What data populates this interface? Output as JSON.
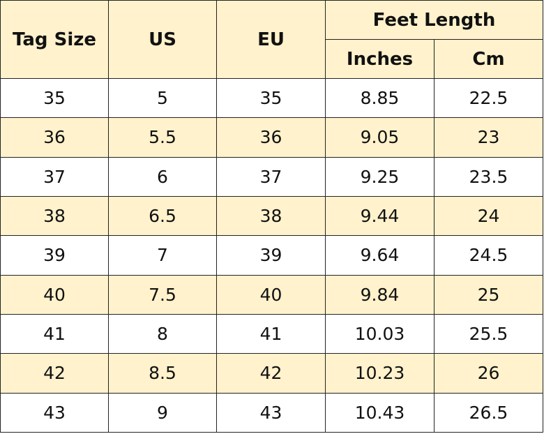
{
  "header": {
    "tag_size": "Tag Size",
    "us": "US",
    "eu": "EU",
    "feet_length": "Feet Length",
    "inches": "Inches",
    "cm": "Cm"
  },
  "colors": {
    "header_bg": "#fff2cc",
    "shaded_row_bg": "#fff2cc",
    "plain_row_bg": "#ffffff",
    "border": "#222222"
  },
  "rows": [
    {
      "tag": "35",
      "us": "5",
      "eu": "35",
      "inches": "8.85",
      "cm": "22.5"
    },
    {
      "tag": "36",
      "us": "5.5",
      "eu": "36",
      "inches": "9.05",
      "cm": "23"
    },
    {
      "tag": "37",
      "us": "6",
      "eu": "37",
      "inches": "9.25",
      "cm": "23.5"
    },
    {
      "tag": "38",
      "us": "6.5",
      "eu": "38",
      "inches": "9.44",
      "cm": "24"
    },
    {
      "tag": "39",
      "us": "7",
      "eu": "39",
      "inches": "9.64",
      "cm": "24.5"
    },
    {
      "tag": "40",
      "us": "7.5",
      "eu": "40",
      "inches": "9.84",
      "cm": "25"
    },
    {
      "tag": "41",
      "us": "8",
      "eu": "41",
      "inches": "10.03",
      "cm": "25.5"
    },
    {
      "tag": "42",
      "us": "8.5",
      "eu": "42",
      "inches": "10.23",
      "cm": "26"
    },
    {
      "tag": "43",
      "us": "9",
      "eu": "43",
      "inches": "10.43",
      "cm": "26.5"
    }
  ]
}
